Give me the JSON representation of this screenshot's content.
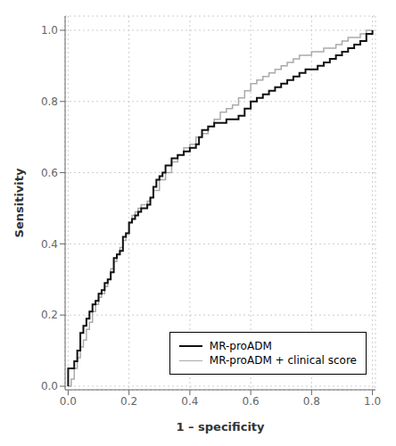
{
  "chart_data": {
    "type": "line",
    "title": "",
    "xlabel": "1 – specificity",
    "ylabel": "Sensitivity",
    "xlim": [
      -0.01,
      1.01
    ],
    "ylim": [
      -0.01,
      1.04
    ],
    "xticks": [
      {
        "value": 0.0,
        "label": "0.0"
      },
      0.2,
      0.4,
      0.6,
      0.8,
      {
        "value": 1.0,
        "label": "1.0"
      }
    ],
    "yticks": [
      {
        "value": 0.0,
        "label": "0.0"
      },
      0.2,
      0.4,
      0.6,
      0.8,
      {
        "value": 1.0,
        "label": "1.0"
      }
    ],
    "grid": true,
    "legend": "lower right",
    "line_style": "step",
    "series": [
      {
        "name": "MR-proADM",
        "color": "#111111",
        "x": [
          0.0,
          0.0,
          0.01,
          0.02,
          0.03,
          0.04,
          0.04,
          0.05,
          0.06,
          0.07,
          0.08,
          0.08,
          0.09,
          0.1,
          0.11,
          0.12,
          0.13,
          0.14,
          0.15,
          0.15,
          0.16,
          0.17,
          0.18,
          0.18,
          0.19,
          0.2,
          0.21,
          0.22,
          0.23,
          0.24,
          0.25,
          0.26,
          0.27,
          0.28,
          0.29,
          0.3,
          0.31,
          0.32,
          0.34,
          0.36,
          0.38,
          0.4,
          0.42,
          0.43,
          0.44,
          0.46,
          0.48,
          0.5,
          0.52,
          0.54,
          0.56,
          0.58,
          0.6,
          0.62,
          0.64,
          0.66,
          0.68,
          0.7,
          0.72,
          0.74,
          0.76,
          0.78,
          0.8,
          0.82,
          0.84,
          0.86,
          0.88,
          0.9,
          0.92,
          0.94,
          0.96,
          0.98,
          1.0
        ],
        "values": [
          0.0,
          0.05,
          0.05,
          0.07,
          0.1,
          0.12,
          0.15,
          0.17,
          0.19,
          0.21,
          0.21,
          0.23,
          0.24,
          0.26,
          0.27,
          0.29,
          0.3,
          0.32,
          0.34,
          0.36,
          0.37,
          0.38,
          0.4,
          0.42,
          0.43,
          0.46,
          0.47,
          0.48,
          0.49,
          0.5,
          0.5,
          0.51,
          0.53,
          0.56,
          0.58,
          0.59,
          0.6,
          0.62,
          0.64,
          0.65,
          0.66,
          0.67,
          0.68,
          0.7,
          0.72,
          0.73,
          0.74,
          0.74,
          0.75,
          0.75,
          0.76,
          0.78,
          0.8,
          0.81,
          0.82,
          0.83,
          0.84,
          0.85,
          0.86,
          0.87,
          0.88,
          0.89,
          0.89,
          0.9,
          0.91,
          0.92,
          0.93,
          0.94,
          0.95,
          0.96,
          0.97,
          0.99,
          1.0
        ]
      },
      {
        "name": "MR-proADM + clinical score",
        "color": "#aaaaaa",
        "x": [
          0.0,
          0.0,
          0.01,
          0.02,
          0.03,
          0.04,
          0.05,
          0.06,
          0.07,
          0.08,
          0.09,
          0.1,
          0.11,
          0.12,
          0.13,
          0.14,
          0.15,
          0.16,
          0.17,
          0.18,
          0.19,
          0.2,
          0.21,
          0.22,
          0.23,
          0.24,
          0.25,
          0.26,
          0.27,
          0.28,
          0.3,
          0.32,
          0.34,
          0.36,
          0.38,
          0.4,
          0.42,
          0.44,
          0.46,
          0.48,
          0.5,
          0.52,
          0.54,
          0.56,
          0.58,
          0.6,
          0.62,
          0.64,
          0.66,
          0.68,
          0.7,
          0.72,
          0.74,
          0.76,
          0.78,
          0.8,
          0.82,
          0.84,
          0.86,
          0.88,
          0.9,
          0.92,
          0.94,
          0.96,
          0.98,
          1.0
        ],
        "values": [
          0.0,
          0.0,
          0.02,
          0.05,
          0.08,
          0.11,
          0.13,
          0.16,
          0.18,
          0.21,
          0.23,
          0.25,
          0.26,
          0.28,
          0.3,
          0.33,
          0.35,
          0.37,
          0.39,
          0.41,
          0.43,
          0.46,
          0.48,
          0.49,
          0.5,
          0.51,
          0.51,
          0.52,
          0.53,
          0.55,
          0.58,
          0.6,
          0.63,
          0.65,
          0.67,
          0.68,
          0.7,
          0.71,
          0.73,
          0.75,
          0.77,
          0.78,
          0.79,
          0.81,
          0.83,
          0.85,
          0.86,
          0.87,
          0.88,
          0.89,
          0.9,
          0.91,
          0.92,
          0.93,
          0.93,
          0.94,
          0.94,
          0.95,
          0.95,
          0.96,
          0.97,
          0.98,
          0.98,
          0.99,
          1.0,
          1.0
        ]
      }
    ]
  }
}
